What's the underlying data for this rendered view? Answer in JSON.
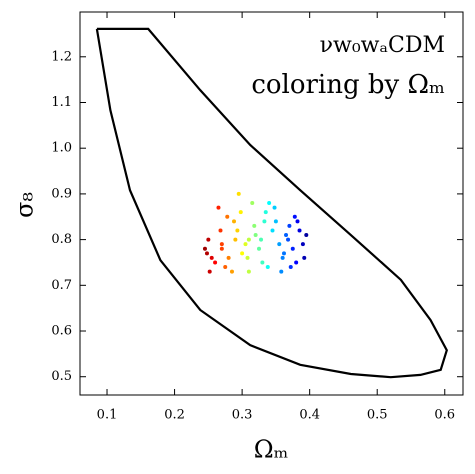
{
  "chart_data": {
    "type": "scatter",
    "annotations": [
      "νw₀wₐCDM",
      "coloring by Ωₘ"
    ],
    "x_label": "Ωₘ",
    "y_label": "σ₈",
    "xlim": [
      0.06,
      0.627
    ],
    "ylim": [
      0.46,
      1.298
    ],
    "xticks": [
      0.1,
      0.2,
      0.3,
      0.4,
      0.5,
      0.6
    ],
    "yticks": [
      0.5,
      0.6,
      0.7,
      0.8,
      0.9,
      {
        "value": 1,
        "label": "1.0"
      },
      1.1,
      1.2
    ],
    "contour": {
      "color": "#000000",
      "x": [
        0.085,
        0.161,
        0.238,
        0.312,
        0.386,
        0.461,
        0.535,
        0.579,
        0.603,
        0.594,
        0.564,
        0.52,
        0.461,
        0.386,
        0.312,
        0.238,
        0.179,
        0.134,
        0.105,
        0.085
      ],
      "y": [
        1.261,
        1.261,
        1.127,
        1.007,
        0.908,
        0.81,
        0.712,
        0.624,
        0.558,
        0.515,
        0.504,
        0.499,
        0.506,
        0.526,
        0.569,
        0.646,
        0.755,
        0.908,
        1.083,
        1.261
      ]
    },
    "points": {
      "colormap": "jet",
      "clim": [
        0.24,
        0.4
      ],
      "x": [
        0.245,
        0.25,
        0.255,
        0.26,
        0.252,
        0.248,
        0.265,
        0.27,
        0.275,
        0.28,
        0.268,
        0.278,
        0.285,
        0.29,
        0.295,
        0.3,
        0.288,
        0.298,
        0.305,
        0.31,
        0.315,
        0.32,
        0.308,
        0.318,
        0.325,
        0.33,
        0.335,
        0.34,
        0.328,
        0.338,
        0.345,
        0.35,
        0.355,
        0.36,
        0.348,
        0.358,
        0.365,
        0.37,
        0.375,
        0.38,
        0.368,
        0.378,
        0.385,
        0.39,
        0.395,
        0.372,
        0.382,
        0.392,
        0.27,
        0.293,
        0.31,
        0.333,
        0.362
      ],
      "y": [
        0.78,
        0.8,
        0.76,
        0.75,
        0.73,
        0.77,
        0.87,
        0.79,
        0.74,
        0.76,
        0.82,
        0.85,
        0.73,
        0.8,
        0.9,
        0.77,
        0.84,
        0.86,
        0.79,
        0.73,
        0.88,
        0.81,
        0.76,
        0.83,
        0.78,
        0.75,
        0.86,
        0.88,
        0.8,
        0.74,
        0.82,
        0.84,
        0.79,
        0.76,
        0.87,
        0.73,
        0.81,
        0.83,
        0.78,
        0.75,
        0.8,
        0.85,
        0.82,
        0.79,
        0.81,
        0.74,
        0.84,
        0.76,
        0.78,
        0.82,
        0.8,
        0.84,
        0.77
      ]
    }
  }
}
